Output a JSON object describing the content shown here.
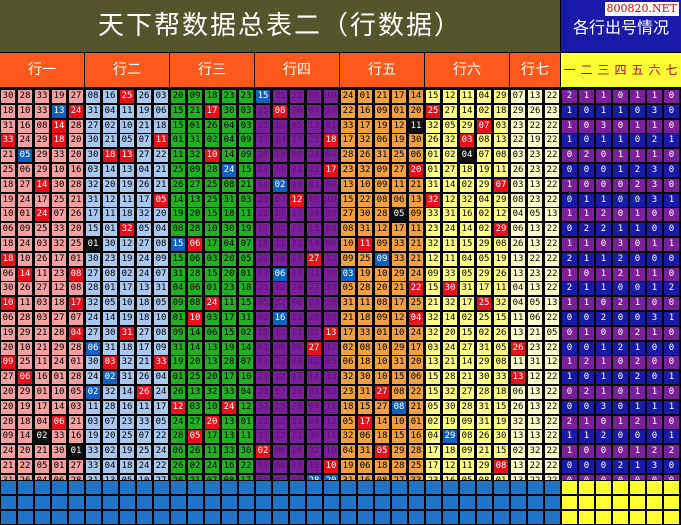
{
  "title": "天下帮数据总表二（行数据）",
  "side_title": "各行出号情况",
  "site": "800820.NET",
  "groups": [
    "行一",
    "行二",
    "行三",
    "行四",
    "行五",
    "行六",
    "行七"
  ],
  "summary_headers": [
    "一",
    "二",
    "三",
    "四",
    "五",
    "六",
    "七"
  ],
  "colors": {
    "g1": "#f4a0a0",
    "g2": "#a8c8f0",
    "g3": "#22b022",
    "g4": "#7a1f9a",
    "g5": "#f0a040",
    "g6": "#ffff88",
    "g7": "#ffffcc",
    "hl_red": "#e8101a",
    "hl_blue": "#1060c0",
    "hl_black": "#111111",
    "sum_a": "#7a1f9a",
    "sum_b": "#1a1aa8",
    "footer": "#1f74c8",
    "footer_right": "#ffff33"
  },
  "rows": [
    [
      "30",
      "28",
      "33",
      "19",
      "27",
      "08",
      "16",
      "25",
      "26",
      "03",
      "20",
      "09",
      "18",
      "23",
      "23",
      "15",
      "31",
      "12",
      "06",
      "10",
      "24",
      "01",
      "21",
      "17",
      "14",
      "15",
      "12",
      "11",
      "04",
      "29",
      "07",
      "13",
      "22"
    ],
    [
      "18",
      "10",
      "33",
      "13",
      "24",
      "31",
      "04",
      "11",
      "19",
      "06",
      "15",
      "21",
      "17",
      "30",
      "03",
      "25",
      "08",
      "26",
      "07",
      "27",
      "22",
      "16",
      "09",
      "01",
      "20",
      "25",
      "27",
      "14",
      "02",
      "18",
      "29",
      "26",
      "23"
    ],
    [
      "31",
      "16",
      "08",
      "14",
      "28",
      "27",
      "02",
      "10",
      "21",
      "18",
      "15",
      "01",
      "26",
      "04",
      "03",
      "23",
      "16",
      "05",
      "13",
      "01",
      "33",
      "17",
      "19",
      "12",
      "11",
      "32",
      "05",
      "29",
      "07",
      "03",
      "23",
      "22",
      "22"
    ],
    [
      "33",
      "24",
      "29",
      "18",
      "20",
      "30",
      "21",
      "05",
      "07",
      "11",
      "01",
      "31",
      "02",
      "04",
      "09",
      "27",
      "24",
      "17",
      "25",
      "18",
      "17",
      "32",
      "06",
      "19",
      "30",
      "26",
      "32",
      "03",
      "08",
      "13",
      "22",
      "19",
      "22"
    ],
    [
      "21",
      "05",
      "29",
      "33",
      "20",
      "30",
      "18",
      "13",
      "27",
      "22",
      "11",
      "32",
      "10",
      "14",
      "09",
      "25",
      "15",
      "09",
      "24",
      "04",
      "28",
      "26",
      "31",
      "25",
      "06",
      "01",
      "02",
      "04",
      "07",
      "08",
      "03",
      "23",
      "22"
    ],
    [
      "25",
      "06",
      "29",
      "10",
      "16",
      "03",
      "14",
      "13",
      "04",
      "21",
      "25",
      "09",
      "28",
      "24",
      "15",
      "21",
      "11",
      "21",
      "22",
      "17",
      "23",
      "32",
      "09",
      "27",
      "20",
      "01",
      "27",
      "18",
      "19",
      "11",
      "26",
      "23",
      "22"
    ],
    [
      "18",
      "27",
      "14",
      "30",
      "28",
      "32",
      "20",
      "19",
      "26",
      "21",
      "26",
      "27",
      "25",
      "08",
      "21",
      "14",
      "02",
      "16",
      "01",
      "04",
      "13",
      "10",
      "09",
      "11",
      "21",
      "31",
      "14",
      "02",
      "29",
      "07",
      "03",
      "13",
      "22"
    ],
    [
      "19",
      "24",
      "17",
      "25",
      "21",
      "31",
      "12",
      "11",
      "17",
      "05",
      "14",
      "13",
      "25",
      "31",
      "03",
      "29",
      "07",
      "12",
      "09",
      "10",
      "15",
      "22",
      "08",
      "06",
      "13",
      "32",
      "12",
      "32",
      "04",
      "29",
      "08",
      "23",
      "22"
    ],
    [
      "10",
      "01",
      "24",
      "07",
      "26",
      "17",
      "11",
      "18",
      "32",
      "20",
      "19",
      "20",
      "15",
      "18",
      "11",
      "22",
      "27",
      "17",
      "24",
      "30",
      "27",
      "30",
      "28",
      "05",
      "09",
      "33",
      "31",
      "16",
      "02",
      "12",
      "04",
      "05",
      "13"
    ],
    [
      "06",
      "09",
      "25",
      "33",
      "20",
      "15",
      "01",
      "32",
      "05",
      "04",
      "08",
      "28",
      "10",
      "30",
      "19",
      "17",
      "02",
      "23",
      "15",
      "08",
      "08",
      "31",
      "12",
      "17",
      "11",
      "23",
      "24",
      "14",
      "02",
      "29",
      "06",
      "13",
      "22"
    ],
    [
      "18",
      "24",
      "03",
      "32",
      "25",
      "01",
      "30",
      "12",
      "27",
      "08",
      "15",
      "06",
      "17",
      "04",
      "07",
      "18",
      "11",
      "22",
      "14",
      "08",
      "10",
      "11",
      "09",
      "33",
      "21",
      "32",
      "11",
      "15",
      "29",
      "08",
      "26",
      "13",
      "22"
    ],
    [
      "18",
      "10",
      "26",
      "17",
      "01",
      "30",
      "23",
      "19",
      "24",
      "09",
      "15",
      "06",
      "03",
      "20",
      "05",
      "22",
      "14",
      "25",
      "27",
      "32",
      "09",
      "25",
      "09",
      "33",
      "21",
      "12",
      "11",
      "04",
      "05",
      "19",
      "13",
      "22",
      "22"
    ],
    [
      "06",
      "14",
      "11",
      "23",
      "08",
      "27",
      "08",
      "02",
      "24",
      "07",
      "31",
      "28",
      "15",
      "20",
      "01",
      "17",
      "06",
      "13",
      "31",
      "30",
      "03",
      "19",
      "10",
      "29",
      "24",
      "09",
      "33",
      "05",
      "29",
      "26",
      "13",
      "23",
      "22"
    ],
    [
      "30",
      "26",
      "27",
      "12",
      "08",
      "28",
      "01",
      "17",
      "13",
      "31",
      "04",
      "06",
      "01",
      "23",
      "18",
      "21",
      "12",
      "19",
      "27",
      "33",
      "05",
      "28",
      "20",
      "21",
      "22",
      "15",
      "30",
      "31",
      "17",
      "11",
      "04",
      "13",
      "22"
    ],
    [
      "10",
      "11",
      "03",
      "18",
      "17",
      "32",
      "05",
      "10",
      "18",
      "05",
      "09",
      "08",
      "24",
      "11",
      "15",
      "05",
      "32",
      "06",
      "23",
      "20",
      "31",
      "11",
      "08",
      "17",
      "25",
      "21",
      "32",
      "17",
      "25",
      "32",
      "04",
      "05",
      "13"
    ],
    [
      "06",
      "28",
      "03",
      "27",
      "07",
      "24",
      "14",
      "19",
      "18",
      "10",
      "01",
      "10",
      "03",
      "17",
      "31",
      "02",
      "16",
      "21",
      "26",
      "30",
      "21",
      "18",
      "09",
      "12",
      "04",
      "32",
      "14",
      "02",
      "25",
      "15",
      "11",
      "06",
      "22"
    ],
    [
      "19",
      "29",
      "21",
      "28",
      "04",
      "27",
      "30",
      "31",
      "27",
      "08",
      "09",
      "14",
      "06",
      "15",
      "02",
      "15",
      "12",
      "21",
      "02",
      "13",
      "17",
      "33",
      "01",
      "10",
      "24",
      "32",
      "20",
      "15",
      "02",
      "26",
      "13",
      "21",
      "05"
    ],
    [
      "20",
      "10",
      "21",
      "29",
      "28",
      "06",
      "31",
      "18",
      "17",
      "09",
      "31",
      "14",
      "13",
      "19",
      "14",
      "01",
      "08",
      "09",
      "27",
      "17",
      "02",
      "08",
      "10",
      "29",
      "17",
      "03",
      "24",
      "27",
      "31",
      "05",
      "26",
      "23",
      "22"
    ],
    [
      "09",
      "25",
      "11",
      "24",
      "01",
      "30",
      "03",
      "32",
      "21",
      "33",
      "19",
      "20",
      "13",
      "28",
      "07",
      "11",
      "22",
      "09",
      "12",
      "05",
      "06",
      "18",
      "10",
      "31",
      "20",
      "13",
      "21",
      "14",
      "29",
      "08",
      "11",
      "31",
      "12"
    ],
    [
      "27",
      "06",
      "16",
      "01",
      "28",
      "24",
      "02",
      "31",
      "26",
      "04",
      "01",
      "25",
      "20",
      "17",
      "10",
      "23",
      "12",
      "17",
      "14",
      "33",
      "32",
      "30",
      "10",
      "15",
      "06",
      "15",
      "28",
      "21",
      "30",
      "33",
      "13",
      "12",
      "22"
    ],
    [
      "20",
      "29",
      "01",
      "10",
      "05",
      "02",
      "32",
      "14",
      "26",
      "24",
      "26",
      "13",
      "32",
      "33",
      "04",
      "31",
      "17",
      "26",
      "04",
      "02",
      "23",
      "31",
      "27",
      "08",
      "22",
      "15",
      "32",
      "27",
      "28",
      "18",
      "06",
      "13",
      "22"
    ],
    [
      "20",
      "19",
      "17",
      "14",
      "03",
      "11",
      "28",
      "16",
      "11",
      "17",
      "12",
      "03",
      "10",
      "24",
      "12",
      "32",
      "28",
      "25",
      "04",
      "11",
      "18",
      "15",
      "27",
      "08",
      "21",
      "05",
      "30",
      "28",
      "31",
      "15",
      "26",
      "13",
      "22"
    ],
    [
      "28",
      "18",
      "04",
      "06",
      "21",
      "03",
      "07",
      "23",
      "33",
      "05",
      "24",
      "27",
      "20",
      "13",
      "01",
      "21",
      "12",
      "31",
      "04",
      "12",
      "05",
      "17",
      "14",
      "10",
      "01",
      "02",
      "19",
      "09",
      "31",
      "19",
      "32",
      "13",
      "22"
    ],
    [
      "09",
      "14",
      "02",
      "33",
      "16",
      "19",
      "20",
      "25",
      "07",
      "22",
      "28",
      "05",
      "17",
      "13",
      "11",
      "27",
      "12",
      "21",
      "30",
      "11",
      "32",
      "06",
      "18",
      "15",
      "16",
      "04",
      "29",
      "08",
      "26",
      "30",
      "13",
      "13",
      "22"
    ],
    [
      "24",
      "20",
      "21",
      "30",
      "01",
      "33",
      "02",
      "19",
      "25",
      "24",
      "06",
      "26",
      "11",
      "33",
      "30",
      "02",
      "06",
      "26",
      "32",
      "10",
      "04",
      "31",
      "05",
      "29",
      "28",
      "17",
      "18",
      "09",
      "21",
      "15",
      "02",
      "32",
      "22"
    ],
    [
      "21",
      "22",
      "05",
      "01",
      "27",
      "33",
      "04",
      "18",
      "24",
      "22",
      "26",
      "02",
      "24",
      "16",
      "22",
      "31",
      "08",
      "03",
      "13",
      "10",
      "19",
      "06",
      "18",
      "28",
      "25",
      "17",
      "12",
      "11",
      "29",
      "08",
      "13",
      "22",
      "22"
    ],
    [
      "31",
      "26",
      "04",
      "06",
      "28",
      "31",
      "13",
      "05",
      "10",
      "27",
      "26",
      "21",
      "07",
      "08",
      "17",
      "05",
      "21",
      "08",
      "28",
      "20",
      "31",
      "16",
      "08",
      "27",
      "33",
      "23",
      "16",
      "05",
      "08",
      "01",
      "13",
      "22",
      "22"
    ]
  ],
  "highlights": [
    [
      0,
      7,
      "r"
    ],
    [
      0,
      15,
      "b"
    ],
    [
      1,
      3,
      "b"
    ],
    [
      1,
      4,
      "r"
    ],
    [
      1,
      12,
      "r"
    ],
    [
      1,
      16,
      "r"
    ],
    [
      1,
      25,
      "r"
    ],
    [
      2,
      3,
      "r"
    ],
    [
      2,
      24,
      "k"
    ],
    [
      2,
      28,
      "r"
    ],
    [
      3,
      0,
      "r"
    ],
    [
      3,
      3,
      "r"
    ],
    [
      3,
      9,
      "r"
    ],
    [
      3,
      19,
      "r"
    ],
    [
      3,
      27,
      "r"
    ],
    [
      4,
      1,
      "b"
    ],
    [
      4,
      6,
      "r"
    ],
    [
      4,
      7,
      "r"
    ],
    [
      4,
      12,
      "r"
    ],
    [
      4,
      27,
      "k"
    ],
    [
      5,
      13,
      "b"
    ],
    [
      5,
      19,
      "r"
    ],
    [
      5,
      24,
      "r"
    ],
    [
      6,
      2,
      "r"
    ],
    [
      6,
      16,
      "b"
    ],
    [
      6,
      29,
      "r"
    ],
    [
      7,
      9,
      "r"
    ],
    [
      7,
      17,
      "r"
    ],
    [
      7,
      25,
      "r"
    ],
    [
      8,
      2,
      "r"
    ],
    [
      8,
      23,
      "k"
    ],
    [
      9,
      7,
      "r"
    ],
    [
      9,
      29,
      "r"
    ],
    [
      10,
      5,
      "k"
    ],
    [
      10,
      10,
      "b"
    ],
    [
      10,
      11,
      "r"
    ],
    [
      10,
      21,
      "r"
    ],
    [
      11,
      0,
      "r"
    ],
    [
      11,
      18,
      "r"
    ],
    [
      11,
      22,
      "b"
    ],
    [
      12,
      1,
      "r"
    ],
    [
      12,
      4,
      "r"
    ],
    [
      12,
      16,
      "b"
    ],
    [
      12,
      20,
      "b"
    ],
    [
      13,
      24,
      "r"
    ],
    [
      13,
      26,
      "r"
    ],
    [
      14,
      0,
      "r"
    ],
    [
      14,
      4,
      "r"
    ],
    [
      14,
      12,
      "r"
    ],
    [
      14,
      28,
      "r"
    ],
    [
      15,
      11,
      "r"
    ],
    [
      15,
      16,
      "b"
    ],
    [
      15,
      24,
      "r"
    ],
    [
      16,
      4,
      "r"
    ],
    [
      16,
      7,
      "r"
    ],
    [
      16,
      19,
      "r"
    ],
    [
      17,
      5,
      "b"
    ],
    [
      17,
      18,
      "r"
    ],
    [
      17,
      30,
      "r"
    ],
    [
      18,
      0,
      "r"
    ],
    [
      18,
      6,
      "r"
    ],
    [
      18,
      9,
      "r"
    ],
    [
      19,
      1,
      "r"
    ],
    [
      19,
      6,
      "b"
    ],
    [
      19,
      30,
      "r"
    ],
    [
      20,
      5,
      "b"
    ],
    [
      20,
      8,
      "r"
    ],
    [
      20,
      22,
      "r"
    ],
    [
      21,
      10,
      "r"
    ],
    [
      21,
      13,
      "r"
    ],
    [
      21,
      23,
      "b"
    ],
    [
      22,
      3,
      "r"
    ],
    [
      22,
      12,
      "r"
    ],
    [
      22,
      21,
      "r"
    ],
    [
      23,
      2,
      "k"
    ],
    [
      23,
      11,
      "r"
    ],
    [
      23,
      26,
      "b"
    ],
    [
      24,
      4,
      "k"
    ],
    [
      24,
      15,
      "r"
    ],
    [
      24,
      22,
      "r"
    ],
    [
      25,
      19,
      "r"
    ],
    [
      25,
      29,
      "r"
    ],
    [
      26,
      18,
      "b"
    ],
    [
      26,
      19,
      "b"
    ]
  ],
  "summary": [
    [
      "2",
      "1",
      "1",
      "0",
      "1",
      "1",
      "0"
    ],
    [
      "1",
      "0",
      "1",
      "1",
      "0",
      "3",
      "0"
    ],
    [
      "1",
      "0",
      "3",
      "0",
      "1",
      "1",
      "0"
    ],
    [
      "1",
      "0",
      "1",
      "1",
      "0",
      "2",
      "1"
    ],
    [
      "0",
      "2",
      "0",
      "1",
      "1",
      "1",
      "0"
    ],
    [
      "0",
      "0",
      "0",
      "1",
      "2",
      "3",
      "0"
    ],
    [
      "1",
      "0",
      "0",
      "0",
      "2",
      "3",
      "0"
    ],
    [
      "0",
      "1",
      "1",
      "0",
      "0",
      "3",
      "1"
    ],
    [
      "1",
      "1",
      "2",
      "0",
      "1",
      "0",
      "0"
    ],
    [
      "0",
      "2",
      "2",
      "1",
      "1",
      "0",
      "0"
    ],
    [
      "1",
      "1",
      "0",
      "3",
      "0",
      "1",
      "1"
    ],
    [
      "2",
      "1",
      "1",
      "2",
      "0",
      "0",
      "0"
    ],
    [
      "1",
      "0",
      "1",
      "2",
      "1",
      "1",
      "0"
    ],
    [
      "2",
      "1",
      "1",
      "0",
      "0",
      "1",
      "2"
    ],
    [
      "1",
      "1",
      "0",
      "2",
      "1",
      "0",
      "0"
    ],
    [
      "0",
      "0",
      "2",
      "0",
      "0",
      "3",
      "1"
    ],
    [
      "0",
      "1",
      "0",
      "0",
      "2",
      "1",
      "0"
    ],
    [
      "0",
      "0",
      "1",
      "2",
      "1",
      "0",
      "0"
    ],
    [
      "1",
      "2",
      "1",
      "0",
      "2",
      "0",
      "0"
    ],
    [
      "1",
      "0",
      "1",
      "0",
      "2",
      "0",
      "1"
    ],
    [
      "0",
      "2",
      "1",
      "0",
      "1",
      "1",
      "0"
    ],
    [
      "0",
      "0",
      "3",
      "0",
      "1",
      "1",
      "1"
    ],
    [
      "2",
      "1",
      "0",
      "1",
      "2",
      "1",
      "0"
    ],
    [
      "1",
      "1",
      "2",
      "0",
      "0",
      "0",
      "1"
    ],
    [
      "1",
      "0",
      "0",
      "0",
      "1",
      "2",
      "2"
    ],
    [
      "0",
      "0",
      "0",
      "2",
      "1",
      "3",
      "0"
    ],
    [
      "0",
      "0",
      "0",
      "0",
      "0",
      "0",
      "0"
    ]
  ]
}
